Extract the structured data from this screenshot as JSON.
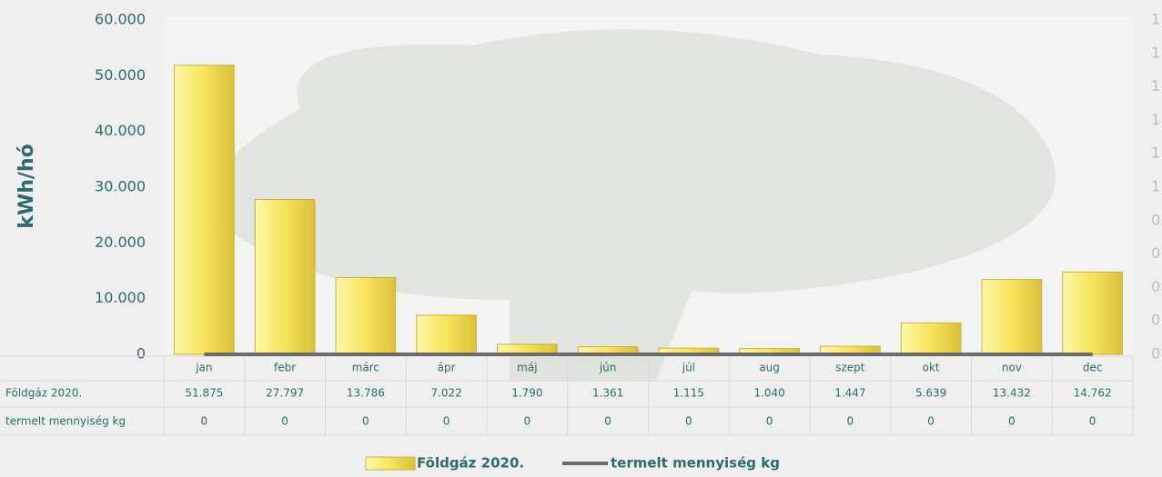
{
  "chart_data": {
    "type": "bar",
    "ylabel": "kWh/hó",
    "categories": [
      "jan",
      "febr",
      "márc",
      "ápr",
      "máj",
      "jún",
      "júl",
      "aug",
      "szept",
      "okt",
      "nov",
      "dec"
    ],
    "series": [
      {
        "name": "Földgáz 2020.",
        "color": "#f3e04a",
        "values": [
          51875,
          27797,
          13786,
          7022,
          1790,
          1361,
          1115,
          1040,
          1447,
          5639,
          13432,
          14762
        ],
        "value_labels": [
          "51.875",
          "27.797",
          "13.786",
          "7.022",
          "1.790",
          "1.361",
          "1.115",
          "1.040",
          "1.447",
          "5.639",
          "13.432",
          "14.762"
        ]
      },
      {
        "name": "termelt mennyiség kg",
        "color": "#6b6b6b",
        "axis": "y2",
        "type": "line",
        "values": [
          0,
          0,
          0,
          0,
          0,
          0,
          0,
          0,
          0,
          0,
          0,
          0
        ]
      }
    ],
    "ylim": [
      0,
      60000
    ],
    "yticks": [
      0,
      {
        "value": 10000,
        "label": "10.000"
      },
      {
        "value": 20000,
        "label": "20.000"
      },
      {
        "value": 30000,
        "label": "30.000"
      },
      {
        "value": 40000,
        "label": "40.000"
      },
      {
        "value": 50000,
        "label": "50.000"
      },
      {
        "value": 60000,
        "label": "60.000"
      }
    ],
    "y2lim": [
      0,
      1
    ],
    "y2ticks": [
      0,
      {
        "value": 0.1,
        "label": "0"
      },
      {
        "value": 0.2,
        "label": "0"
      },
      {
        "value": 0.3,
        "label": "0"
      },
      {
        "value": 0.4,
        "label": "0"
      },
      {
        "value": 0.5,
        "label": "1"
      },
      {
        "value": 0.6,
        "label": "1"
      },
      {
        "value": 0.7,
        "label": "1"
      },
      {
        "value": 0.8,
        "label": "1"
      },
      {
        "value": 0.9,
        "label": "1"
      },
      1
    ],
    "legend": "bottom"
  }
}
